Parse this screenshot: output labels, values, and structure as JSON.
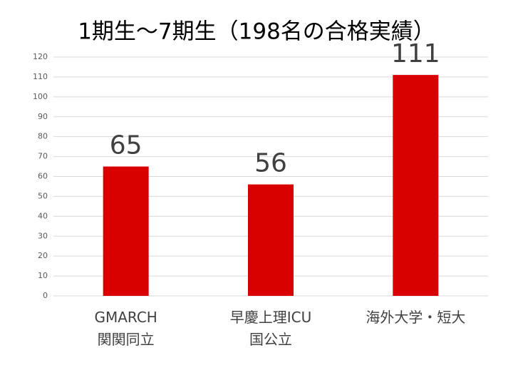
{
  "chart_data": {
    "type": "bar",
    "title": "1期生～7期生（198名の合格実績）",
    "categories": [
      "GMARCH\n関関同立",
      "早慶上理ICU\n国公立",
      "海外大学・短大"
    ],
    "values": [
      65,
      56,
      111
    ],
    "color": "#d90000",
    "ylim": [
      0,
      120
    ],
    "yticks": [
      0,
      10,
      20,
      30,
      40,
      50,
      60,
      70,
      80,
      90,
      100,
      110,
      120
    ],
    "grid": true
  }
}
